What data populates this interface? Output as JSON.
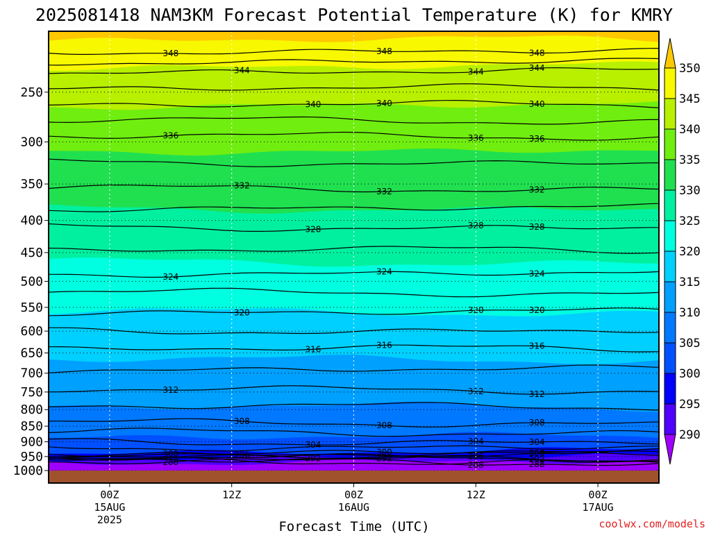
{
  "chart_data": {
    "type": "contour",
    "title": "2025081418 NAM3KM Forecast Potential Temperature (K) for KMRY",
    "xlabel": "Forecast Time (UTC)",
    "ylabel": "",
    "y_axis": {
      "scale": "log",
      "inverted": true,
      "range": [
        1000,
        200
      ],
      "tick_labels": [
        "250",
        "300",
        "350",
        "400",
        "450",
        "500",
        "550",
        "600",
        "650",
        "700",
        "750",
        "800",
        "850",
        "900",
        "950",
        "1000"
      ]
    },
    "x_axis": {
      "unit": "hours",
      "range": [
        -6,
        54
      ],
      "ticks": [
        {
          "hour": 0,
          "line1": "00Z",
          "line2": "15AUG",
          "line3": "2025"
        },
        {
          "hour": 12,
          "line1": "12Z",
          "line2": "",
          "line3": ""
        },
        {
          "hour": 24,
          "line1": "00Z",
          "line2": "16AUG",
          "line3": ""
        },
        {
          "hour": 36,
          "line1": "12Z",
          "line2": "",
          "line3": ""
        },
        {
          "hour": 48,
          "line1": "00Z",
          "line2": "17AUG",
          "line3": ""
        }
      ]
    },
    "colorbar": {
      "levels": [
        "290",
        "295",
        "300",
        "305",
        "310",
        "315",
        "320",
        "325",
        "330",
        "335",
        "340",
        "345",
        "350"
      ],
      "colors": [
        "#a000ff",
        "#5000ff",
        "#0000ff",
        "#0050ff",
        "#0078ff",
        "#00a0ff",
        "#00d0ff",
        "#00ffe0",
        "#00f0a0",
        "#20e050",
        "#70ee10",
        "#b8f000",
        "#f8f800",
        "#ffc800"
      ]
    },
    "contours": [
      {
        "value": 348,
        "pressure": 215,
        "label": "348"
      },
      {
        "value": 344,
        "pressure": 232,
        "label": "344"
      },
      {
        "value": 340,
        "pressure": 262,
        "label": "340"
      },
      {
        "value": 336,
        "pressure": 294,
        "label": "336"
      },
      {
        "value": 332,
        "pressure": 356,
        "label": "332"
      },
      {
        "value": 328,
        "pressure": 410,
        "label": "328"
      },
      {
        "value": 324,
        "pressure": 485,
        "label": "324"
      },
      {
        "value": 320,
        "pressure": 560,
        "label": "320"
      },
      {
        "value": 316,
        "pressure": 640,
        "label": "316"
      },
      {
        "value": 312,
        "pressure": 745,
        "label": "312"
      },
      {
        "value": 308,
        "pressure": 840,
        "label": "308"
      },
      {
        "value": 304,
        "pressure": 900,
        "label": "304"
      },
      {
        "value": 300,
        "pressure": 935,
        "label": "300"
      },
      {
        "value": 296,
        "pressure": 950,
        "label": "296"
      },
      {
        "value": 292,
        "pressure": 962,
        "label": "292"
      },
      {
        "value": 288,
        "pressure": 970,
        "label": "288"
      }
    ],
    "grid": true
  },
  "credit": "coolwx.com/models"
}
